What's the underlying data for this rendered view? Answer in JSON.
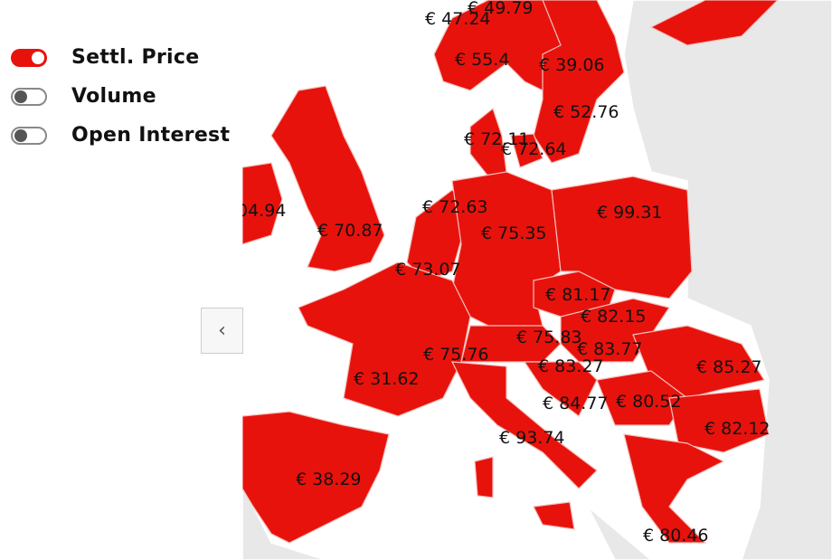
{
  "toggles": [
    {
      "label": "Settl. Price",
      "on": true
    },
    {
      "label": "Volume",
      "on": false
    },
    {
      "label": "Open Interest",
      "on": false
    }
  ],
  "back_button": {
    "icon": "chevron-left-icon",
    "glyph": "‹"
  },
  "colors": {
    "active": "#e8120c",
    "inactive_land": "#e8e8e8",
    "sea": "#ffffff"
  },
  "prices": [
    {
      "label": "€ 47.24"
    },
    {
      "label": "€ 49.79"
    },
    {
      "label": "€ 55.4"
    },
    {
      "label": "€ 39.06"
    },
    {
      "label": "€ 52.76"
    },
    {
      "label": "€ 72.11"
    },
    {
      "label": "€ 72.64"
    },
    {
      "label": "04.94"
    },
    {
      "label": "€ 72.63"
    },
    {
      "label": "€ 75.35"
    },
    {
      "label": "€ 99.31"
    },
    {
      "label": "€ 70.87"
    },
    {
      "label": "€ 73.07"
    },
    {
      "label": "€ 81.17"
    },
    {
      "label": "€ 82.15"
    },
    {
      "label": "€ 75.83"
    },
    {
      "label": "€ 83.77"
    },
    {
      "label": "€ 75.76"
    },
    {
      "label": "€ 83.27"
    },
    {
      "label": "€ 85.27"
    },
    {
      "label": "€ 31.62"
    },
    {
      "label": "€ 84.77"
    },
    {
      "label": "€ 80.52"
    },
    {
      "label": "€ 82.12"
    },
    {
      "label": "€ 93.74"
    },
    {
      "label": "€ 38.29"
    },
    {
      "label": "€ 80.46"
    }
  ]
}
